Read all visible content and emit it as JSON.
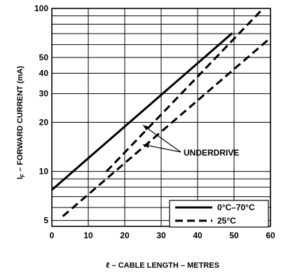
{
  "chart_data": {
    "type": "line",
    "xlabel": "ℓ – CABLE LENGTH – METRES",
    "ylabel_prefix": "I",
    "ylabel_sub": "F",
    "ylabel_rest": " – FORWARD CURRENT (mA)",
    "x_ticks": [
      0,
      10,
      20,
      30,
      40,
      50,
      60
    ],
    "y_ticks": [
      5,
      10,
      20,
      30,
      40,
      50,
      100
    ],
    "y_minor": [
      6,
      7,
      8,
      9,
      60,
      70,
      80,
      90
    ],
    "xlim": [
      0,
      60
    ],
    "ylim": [
      4.6,
      100
    ],
    "y_scale": "log",
    "grid": true,
    "legend_position": "bottom-right",
    "series": [
      {
        "name": "0°C–70°C",
        "style": "solid",
        "x": [
          0,
          49.5
        ],
        "y": [
          7.7,
          70.5
        ]
      },
      {
        "name": "25°C",
        "style": "dashed",
        "x": [
          3,
          60
        ],
        "y": [
          5.3,
          66
        ]
      },
      {
        "name": "",
        "style": "dashed",
        "x": [
          15,
          58
        ],
        "y": [
          10,
          100
        ]
      }
    ],
    "annotation": {
      "text": "UNDERDRIVE",
      "arrow_targets": [
        [
          25,
          19.2
        ],
        [
          25,
          14.6
        ]
      ]
    }
  }
}
